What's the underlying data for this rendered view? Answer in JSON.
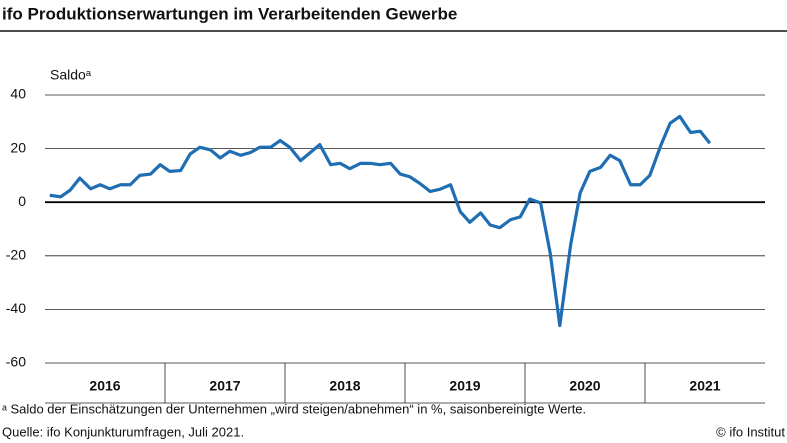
{
  "chart_data": {
    "type": "line",
    "title": "ifo Produktionserwartungen im Verarbeitenden Gewerbe",
    "ylabel": "Saldoᵃ",
    "footnote": "ᵃ Saldo der Einschätzungen der Unternehmen „wird steigen/abnehmen“ in %, saisonbereinigte Werte.",
    "source": "Quelle: ifo Konjunkturumfragen, Juli 2021.",
    "credit": "© ifo Institut",
    "xlim": [
      2016,
      2022
    ],
    "xticks": [
      {
        "value": 2016.5,
        "label": "2016"
      },
      {
        "value": 2017.5,
        "label": "2017"
      },
      {
        "value": 2018.5,
        "label": "2018"
      },
      {
        "value": 2019.5,
        "label": "2019"
      },
      {
        "value": 2020.5,
        "label": "2020"
      },
      {
        "value": 2021.5,
        "label": "2021"
      }
    ],
    "xboundaries": [
      2017,
      2018,
      2019,
      2020,
      2021
    ],
    "ylim": [
      -60,
      40
    ],
    "yticks": [
      -60,
      -40,
      -20,
      0,
      20,
      40
    ],
    "grid": true,
    "series": [
      {
        "color": "#1f6db3",
        "x": [
          2016.04,
          2016.13,
          2016.21,
          2016.29,
          2016.38,
          2016.46,
          2016.54,
          2016.63,
          2016.71,
          2016.79,
          2016.88,
          2016.96,
          2017.04,
          2017.13,
          2017.21,
          2017.29,
          2017.38,
          2017.46,
          2017.54,
          2017.63,
          2017.71,
          2017.79,
          2017.88,
          2017.96,
          2018.04,
          2018.13,
          2018.21,
          2018.29,
          2018.38,
          2018.46,
          2018.54,
          2018.63,
          2018.71,
          2018.79,
          2018.88,
          2018.96,
          2019.04,
          2019.13,
          2019.21,
          2019.29,
          2019.38,
          2019.46,
          2019.54,
          2019.63,
          2019.71,
          2019.79,
          2019.88,
          2019.96,
          2020.04,
          2020.13,
          2020.21,
          2020.29,
          2020.38,
          2020.46,
          2020.54,
          2020.63,
          2020.71,
          2020.79,
          2020.88,
          2020.96,
          2021.04,
          2021.13,
          2021.21,
          2021.29,
          2021.38,
          2021.46,
          2021.54
        ],
        "values": [
          2.6,
          2,
          4.5,
          9,
          5,
          6.5,
          5,
          6.5,
          6.5,
          10,
          10.5,
          14,
          11.5,
          11.8,
          18,
          20.5,
          19.5,
          16.5,
          19,
          17.5,
          18.5,
          20.5,
          20.5,
          23,
          20.5,
          15.5,
          18.5,
          21.5,
          14,
          14.5,
          12.5,
          14.5,
          14.5,
          14,
          14.5,
          10.5,
          9.5,
          6.8,
          4,
          4.8,
          6.5,
          -3.5,
          -7.5,
          -4,
          -8.5,
          -9.5,
          -6.5,
          -5.5,
          1.2,
          -0.3,
          -19,
          -46,
          -16,
          3.5,
          11.5,
          13,
          17.5,
          15.5,
          6.5,
          6.5,
          10,
          21,
          29.5,
          32,
          26,
          26.5,
          22
        ]
      }
    ]
  }
}
